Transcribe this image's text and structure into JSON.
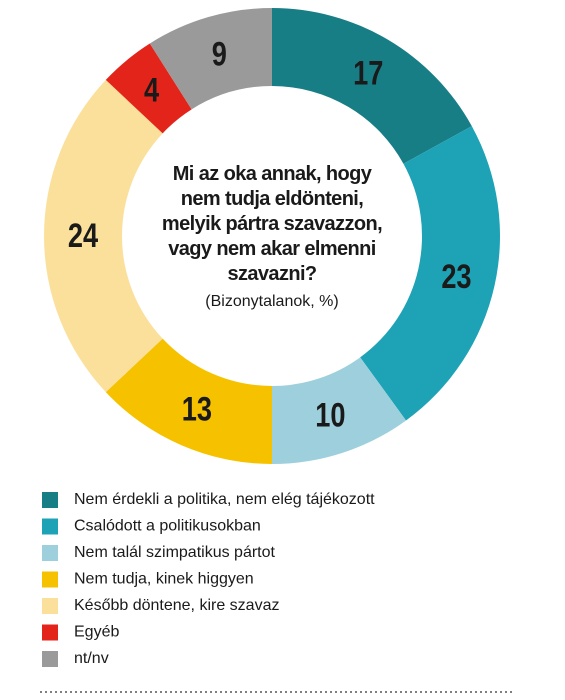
{
  "chart_data": {
    "type": "donut",
    "title": "Mi az oka annak, hogy nem tudja eldönteni, melyik pártra szavazzon, vagy nem akar elmenni szavazni?",
    "subtitle": "(Bizonytalanok, %)",
    "categories": [
      "Nem érdekli a politika, nem elég tájékozott",
      "Csalódott a politikusokban",
      "Nem talál szimpatikus pártot",
      "Nem tudja, kinek higgyen",
      "Később döntene, kire szavaz",
      "Egyéb",
      "nt/nv"
    ],
    "values": [
      17,
      23,
      10,
      13,
      24,
      4,
      9
    ],
    "colors": [
      "#187e86",
      "#1ea3b6",
      "#9dd0dc",
      "#f6c200",
      "#fbe09c",
      "#e3241b",
      "#9a9a9a"
    ]
  }
}
